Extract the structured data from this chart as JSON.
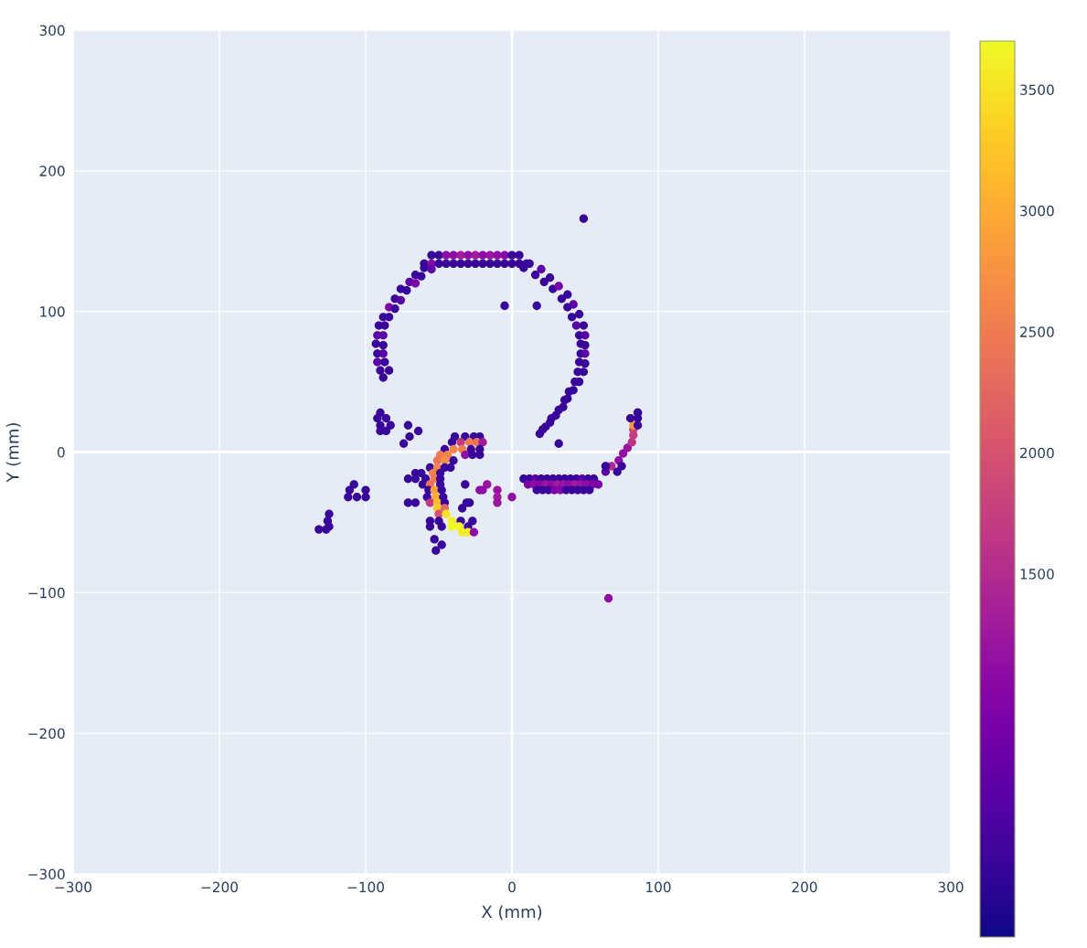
{
  "chart_data": {
    "type": "scatter",
    "xlabel": "X (mm)",
    "ylabel": "Y (mm)",
    "marker": "circle",
    "grid": true,
    "xlim": [
      -300,
      300
    ],
    "ylim": [
      -300,
      300
    ],
    "xticks": [
      {
        "value": -300,
        "label": "−300"
      },
      {
        "value": -200,
        "label": "−200"
      },
      {
        "value": -100,
        "label": "−100"
      },
      0,
      100,
      200,
      300
    ],
    "yticks": [
      {
        "value": -300,
        "label": "−300"
      },
      {
        "value": -200,
        "label": "−200"
      },
      {
        "value": -100,
        "label": "−100"
      },
      0,
      100,
      200,
      300
    ],
    "clim": [
      0,
      3700
    ],
    "cticks": [
      1500,
      2000,
      2500,
      3000,
      3500
    ],
    "x": [
      -55,
      -50,
      -45,
      -40,
      -35,
      -30,
      -25,
      -20,
      -15,
      -10,
      -5,
      0,
      5,
      -60,
      -55,
      -50,
      -45,
      -40,
      -35,
      -30,
      -25,
      -20,
      -15,
      -10,
      -5,
      0,
      5,
      10,
      -60,
      -66,
      -70,
      -76,
      -80,
      -84,
      -88,
      -91,
      -92,
      -93,
      -92,
      -92,
      -90,
      -88,
      -55,
      -62,
      -66,
      -72,
      -76,
      -80,
      -84,
      -87,
      -88,
      -88,
      -88,
      -87,
      -84,
      8,
      16,
      22,
      28,
      34,
      38,
      41,
      44,
      46,
      47,
      47,
      46,
      45,
      43,
      39,
      36,
      32,
      27,
      23,
      19,
      12,
      20,
      26,
      32,
      38,
      42,
      46,
      49,
      50,
      50,
      50,
      50,
      49,
      46,
      42,
      38,
      35,
      30,
      26,
      21,
      49,
      -5,
      17,
      32,
      -90,
      -92,
      -86,
      -83,
      -90,
      -90,
      -86,
      -71,
      -64,
      -70,
      -74,
      -108,
      -111,
      -112,
      -106,
      -100,
      -100,
      -125,
      -126,
      -125,
      -132,
      -127,
      -39,
      -32,
      -26,
      -22,
      -41,
      -35,
      -29,
      -24,
      -20,
      -46,
      -40,
      -34,
      -28,
      -22,
      -49,
      -44,
      -32,
      -27,
      -22,
      -51,
      -46,
      -40,
      -56,
      -51,
      -46,
      -42,
      -66,
      -62,
      -54,
      -49,
      -71,
      -66,
      -59,
      -53,
      -49,
      -61,
      -56,
      -49,
      -57,
      -53,
      -48,
      -58,
      -52,
      -47,
      -71,
      -66,
      -56,
      -51,
      -46,
      -31,
      -29,
      -51,
      -46,
      -34,
      -50,
      -45,
      -56,
      -50,
      -41,
      -35,
      -27,
      -56,
      -48,
      -41,
      -36,
      -30,
      -34,
      -30,
      -26,
      -53,
      -48,
      -52,
      -32,
      -17,
      -22,
      -20,
      -10,
      -10,
      -10,
      0,
      8,
      12,
      16,
      20,
      24,
      28,
      32,
      36,
      40,
      44,
      48,
      52,
      56,
      11,
      15,
      19,
      23,
      27,
      31,
      35,
      39,
      43,
      47,
      51,
      55,
      59,
      17,
      21,
      25,
      29,
      33,
      37,
      41,
      45,
      49,
      53,
      64,
      68,
      73,
      76,
      79,
      82,
      83,
      83,
      83,
      81,
      86,
      86,
      86,
      86,
      75,
      72,
      64,
      66
    ],
    "values": [
      140,
      140,
      140,
      140,
      140,
      140,
      140,
      140,
      140,
      140,
      140,
      140,
      140,
      134,
      134,
      134,
      134,
      134,
      134,
      134,
      134,
      134,
      134,
      134,
      134,
      134,
      134,
      134,
      131,
      126,
      121,
      116,
      109,
      103,
      96,
      90,
      83,
      77,
      70,
      64,
      58,
      53,
      130,
      125,
      120,
      115,
      108,
      102,
      96,
      90,
      83,
      76,
      70,
      64,
      58,
      131,
      126,
      121,
      116,
      109,
      103,
      96,
      90,
      83,
      77,
      70,
      64,
      57,
      50,
      43,
      37,
      30,
      24,
      18,
      13,
      134,
      130,
      124,
      118,
      112,
      105,
      98,
      90,
      83,
      76,
      70,
      63,
      57,
      50,
      44,
      38,
      32,
      26,
      21,
      16,
      166,
      104,
      104,
      6,
      28,
      24,
      24,
      19,
      19,
      15,
      15,
      19,
      15,
      11,
      6,
      -23,
      -27,
      -32,
      -32,
      -27,
      -32,
      -44,
      -49,
      -53,
      -55,
      -55,
      11,
      11,
      11,
      11,
      7,
      7,
      7,
      7,
      7,
      2,
      2,
      2,
      2,
      2,
      -2,
      -2,
      -2,
      -2,
      -2,
      -6,
      -6,
      -6,
      -11,
      -11,
      -11,
      -11,
      -15,
      -15,
      -15,
      -15,
      -19,
      -19,
      -19,
      -19,
      -19,
      -23,
      -23,
      -23,
      -27,
      -27,
      -27,
      -32,
      -32,
      -32,
      -36,
      -36,
      -36,
      -36,
      -36,
      -36,
      -36,
      -40,
      -40,
      -40,
      -44,
      -44,
      -49,
      -49,
      -49,
      -49,
      -49,
      -53,
      -53,
      -53,
      -53,
      -53,
      -57,
      -57,
      -57,
      -62,
      -66,
      -70,
      -23,
      -23,
      -27,
      -27,
      -27,
      -32,
      -36,
      -32,
      -19,
      -19,
      -19,
      -19,
      -19,
      -19,
      -19,
      -19,
      -19,
      -19,
      -19,
      -19,
      -19,
      -23,
      -23,
      -23,
      -23,
      -23,
      -23,
      -23,
      -23,
      -23,
      -23,
      -23,
      -23,
      -23,
      -27,
      -27,
      -27,
      -27,
      -27,
      -27,
      -27,
      -27,
      -27,
      -27,
      -14,
      -10,
      -6,
      -1,
      3,
      7,
      12,
      16,
      19,
      24,
      28,
      28,
      24,
      19,
      -10,
      -14,
      -10,
      -104
    ],
    "cvalues": [
      300,
      300,
      1100,
      1100,
      1300,
      1100,
      1300,
      1100,
      1200,
      1100,
      1000,
      300,
      300,
      300,
      1000,
      300,
      300,
      300,
      300,
      300,
      300,
      300,
      300,
      300,
      300,
      300,
      300,
      300,
      300,
      300,
      600,
      300,
      300,
      900,
      300,
      300,
      600,
      300,
      300,
      600,
      300,
      300,
      600,
      300,
      900,
      300,
      600,
      300,
      300,
      300,
      600,
      300,
      600,
      300,
      300,
      300,
      300,
      300,
      300,
      300,
      300,
      300,
      600,
      300,
      300,
      300,
      300,
      300,
      300,
      300,
      300,
      300,
      300,
      300,
      300,
      300,
      600,
      300,
      900,
      300,
      600,
      300,
      300,
      600,
      300,
      600,
      300,
      300,
      300,
      300,
      300,
      300,
      300,
      300,
      300,
      300,
      300,
      300,
      300,
      300,
      300,
      300,
      300,
      300,
      300,
      300,
      300,
      300,
      300,
      300,
      300,
      300,
      300,
      300,
      300,
      300,
      300,
      300,
      300,
      300,
      300,
      300,
      300,
      300,
      300,
      300,
      1700,
      2500,
      2400,
      1300,
      300,
      2600,
      2500,
      300,
      300,
      2500,
      2600,
      1100,
      300,
      300,
      2400,
      2700,
      300,
      300,
      2600,
      300,
      300,
      300,
      300,
      2600,
      300,
      300,
      300,
      300,
      2500,
      300,
      300,
      2400,
      300,
      300,
      2900,
      300,
      300,
      3000,
      300,
      300,
      300,
      1700,
      3200,
      300,
      300,
      300,
      3300,
      2300,
      300,
      2000,
      3500,
      300,
      300,
      3600,
      300,
      300,
      300,
      300,
      3700,
      3700,
      300,
      3600,
      3600,
      1100,
      300,
      300,
      300,
      300,
      1200,
      1000,
      1100,
      1200,
      1300,
      1200,
      1100,
      300,
      300,
      600,
      300,
      300,
      300,
      300,
      300,
      300,
      300,
      600,
      300,
      300,
      900,
      1100,
      1000,
      1200,
      1100,
      1300,
      1200,
      1100,
      1300,
      1200,
      1100,
      1000,
      900,
      300,
      300,
      300,
      900,
      1000,
      300,
      300,
      300,
      300,
      300,
      600,
      1500,
      1100,
      1100,
      1200,
      1600,
      1700,
      1800,
      2800,
      300,
      300,
      300,
      300,
      300,
      300,
      300,
      300,
      1100
    ]
  }
}
